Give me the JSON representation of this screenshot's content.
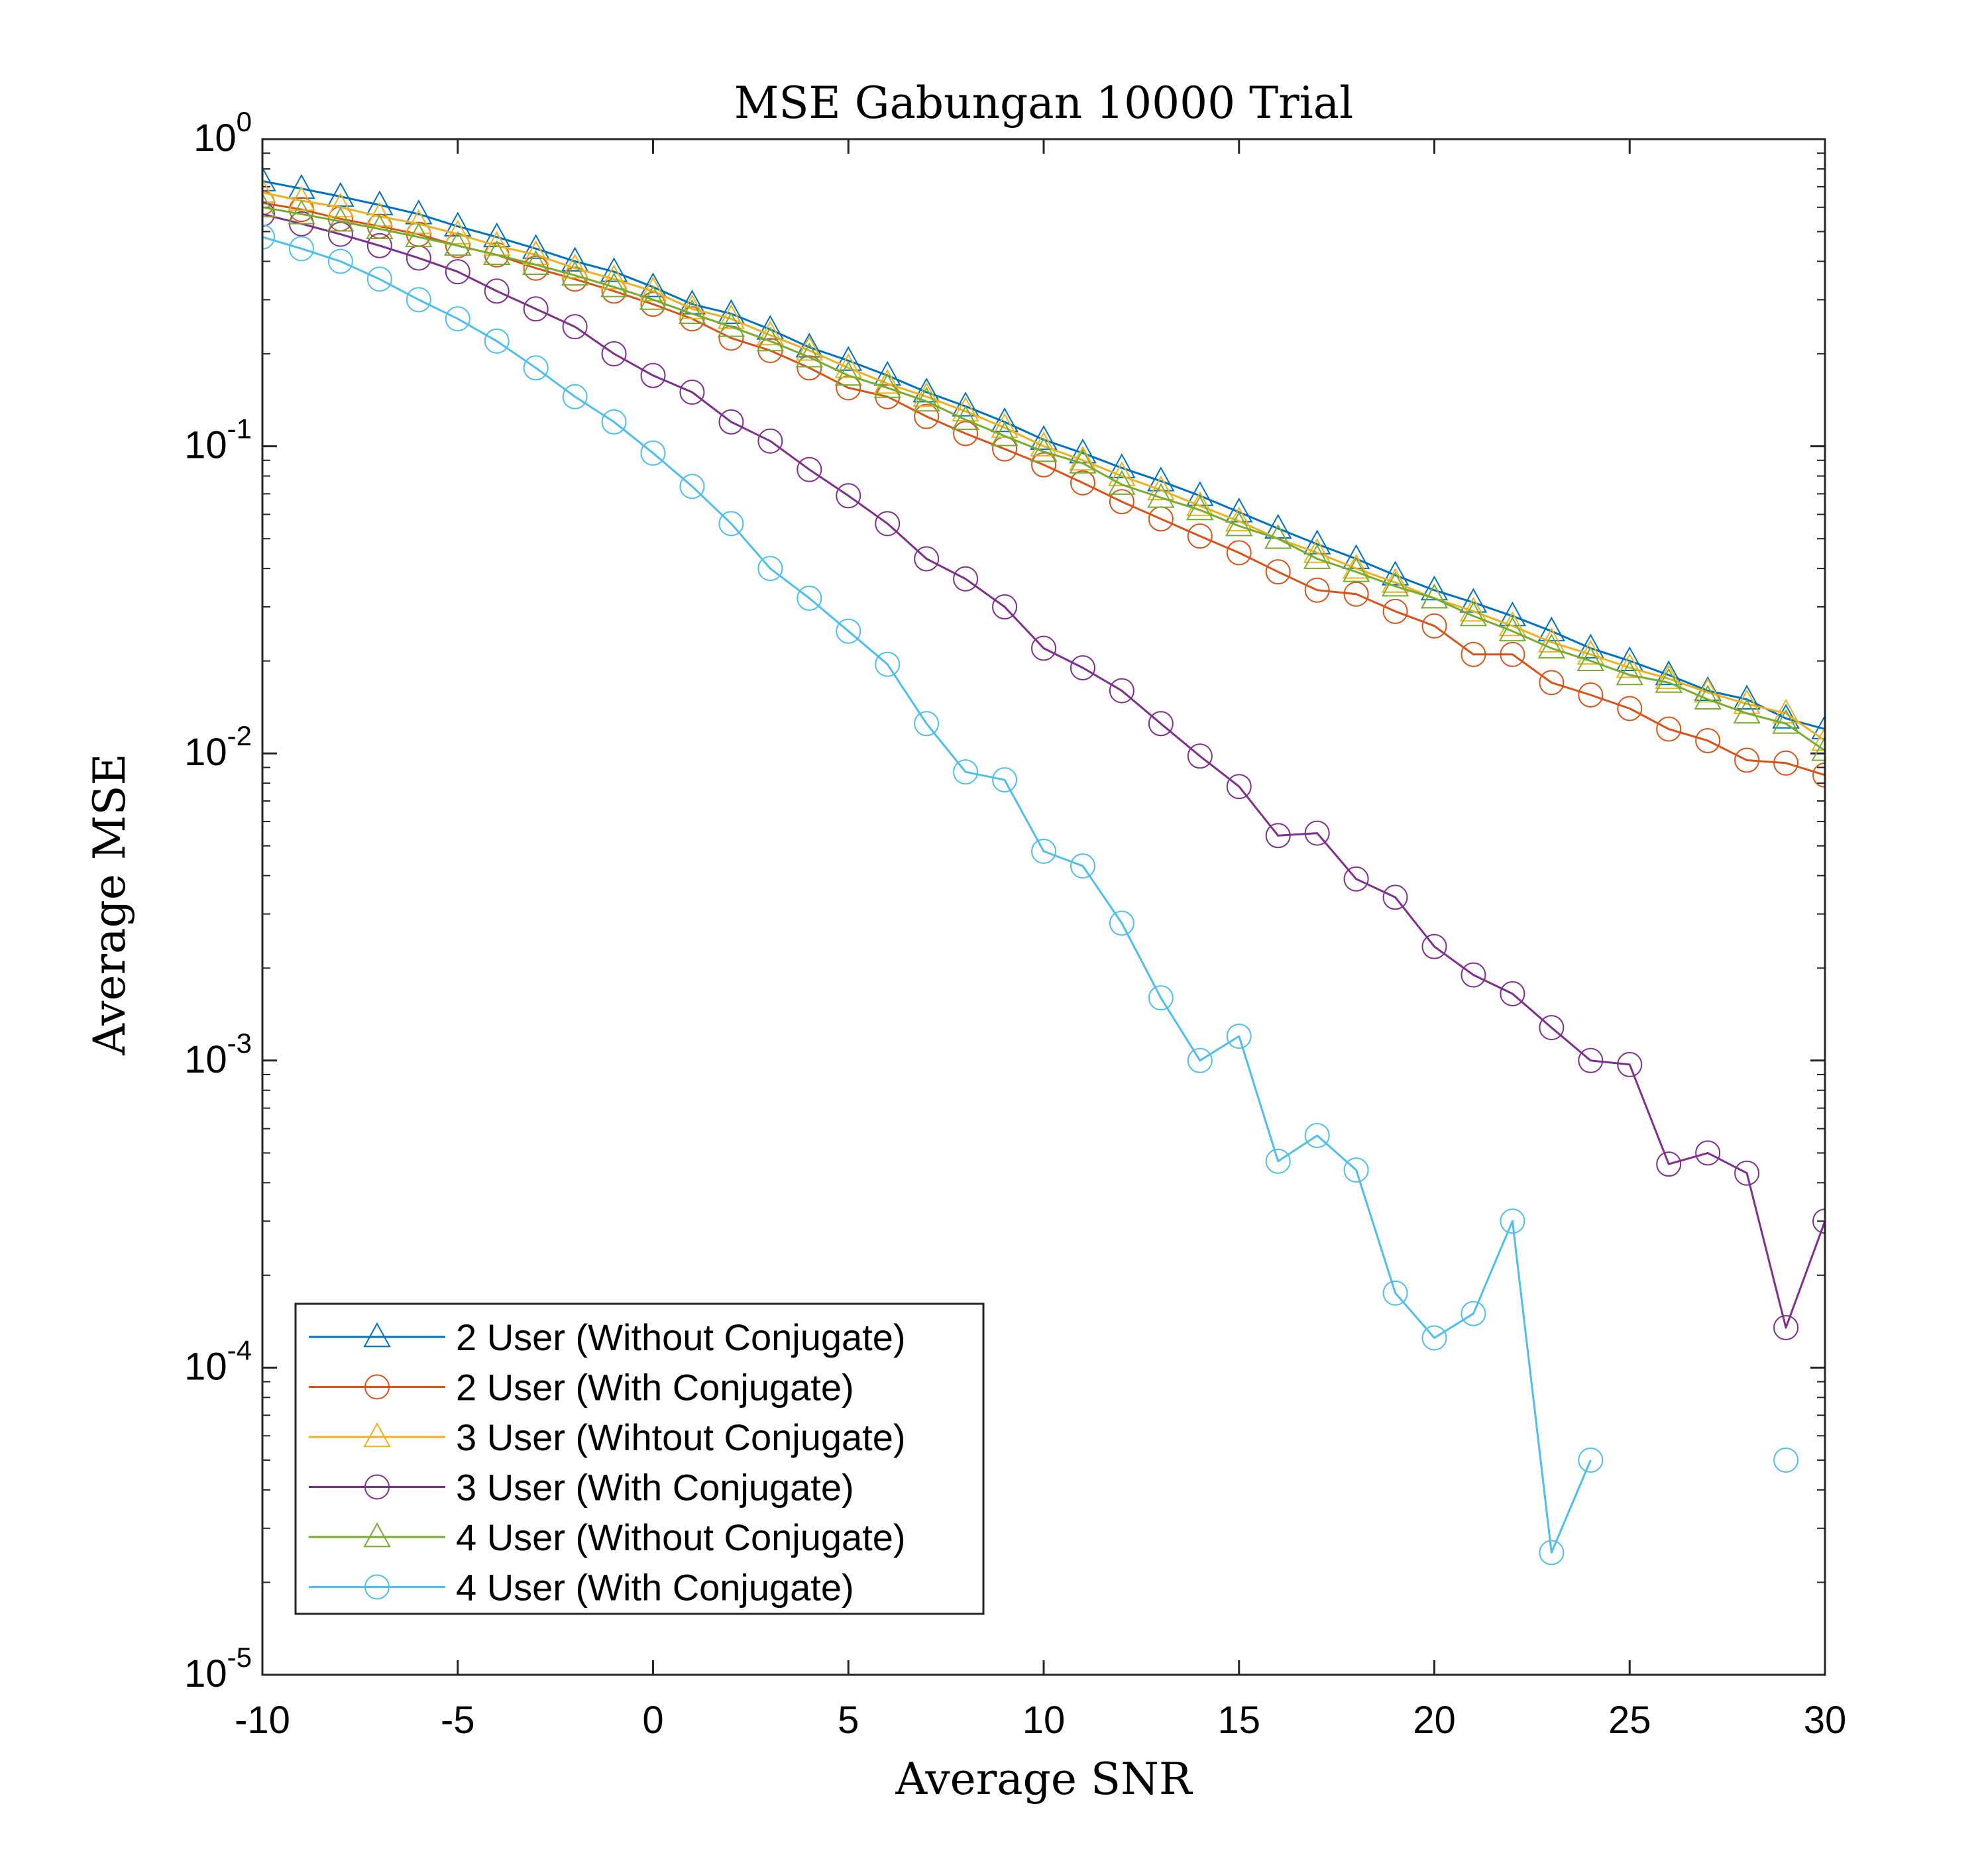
{
  "chart_data": {
    "type": "line",
    "title": "MSE Gabungan 10000 Trial",
    "xlabel": "Average SNR",
    "ylabel": "Average MSE",
    "xlim": [
      -10,
      30
    ],
    "ylim": [
      1e-05,
      1
    ],
    "yscale": "log",
    "grid": false,
    "legend_position": "bottom-left",
    "x_ticks": [
      "-10",
      "-5",
      "0",
      "5",
      "10",
      "15",
      "20",
      "25",
      "30"
    ],
    "y_ticks": [
      {
        "base": "10",
        "exp": "0"
      },
      {
        "base": "10",
        "exp": "-1"
      },
      {
        "base": "10",
        "exp": "-2"
      },
      {
        "base": "10",
        "exp": "-3"
      },
      {
        "base": "10",
        "exp": "-4"
      },
      {
        "base": "10",
        "exp": "-5"
      }
    ],
    "x": [
      -10,
      -9,
      -8,
      -7,
      -6,
      -5,
      -4,
      -3,
      -2,
      -1,
      0,
      1,
      2,
      3,
      4,
      5,
      6,
      7,
      8,
      9,
      10,
      11,
      12,
      13,
      14,
      15,
      16,
      17,
      18,
      19,
      20,
      21,
      22,
      23,
      24,
      25,
      26,
      27,
      28,
      29,
      30
    ],
    "series": [
      {
        "name": "2 User (Without Conjugate)",
        "color": "#0072BD",
        "marker": "triangle",
        "values": [
          0.73,
          0.69,
          0.65,
          0.61,
          0.57,
          0.52,
          0.48,
          0.44,
          0.4,
          0.37,
          0.33,
          0.29,
          0.27,
          0.24,
          0.21,
          0.19,
          0.17,
          0.15,
          0.135,
          0.12,
          0.105,
          0.095,
          0.085,
          0.077,
          0.069,
          0.061,
          0.054,
          0.048,
          0.043,
          0.038,
          0.034,
          0.031,
          0.028,
          0.025,
          0.022,
          0.02,
          0.018,
          0.016,
          0.015,
          0.013,
          0.012
        ]
      },
      {
        "name": "2 User (With Conjugate)",
        "color": "#D95319",
        "marker": "circle",
        "values": [
          0.62,
          0.59,
          0.55,
          0.52,
          0.49,
          0.45,
          0.42,
          0.38,
          0.35,
          0.32,
          0.29,
          0.26,
          0.225,
          0.205,
          0.18,
          0.155,
          0.145,
          0.125,
          0.11,
          0.098,
          0.087,
          0.076,
          0.066,
          0.058,
          0.051,
          0.045,
          0.039,
          0.034,
          0.033,
          0.029,
          0.026,
          0.021,
          0.021,
          0.017,
          0.0155,
          0.014,
          0.012,
          0.011,
          0.0095,
          0.0093,
          0.0085
        ]
      },
      {
        "name": "3 User (Wihtout Conjugate)",
        "color": "#EDB120",
        "marker": "triangle",
        "values": [
          0.67,
          0.63,
          0.6,
          0.56,
          0.53,
          0.49,
          0.45,
          0.42,
          0.38,
          0.35,
          0.32,
          0.28,
          0.26,
          0.23,
          0.205,
          0.18,
          0.16,
          0.145,
          0.13,
          0.115,
          0.1,
          0.09,
          0.08,
          0.072,
          0.064,
          0.057,
          0.05,
          0.045,
          0.04,
          0.036,
          0.032,
          0.029,
          0.026,
          0.023,
          0.021,
          0.019,
          0.0175,
          0.0158,
          0.0145,
          0.0135,
          0.011
        ]
      },
      {
        "name": "3 User (With Conjugate)",
        "color": "#7E2F8E",
        "marker": "circle",
        "values": [
          0.57,
          0.53,
          0.49,
          0.45,
          0.41,
          0.37,
          0.32,
          0.28,
          0.245,
          0.2,
          0.17,
          0.15,
          0.12,
          0.104,
          0.084,
          0.069,
          0.056,
          0.043,
          0.037,
          0.03,
          0.022,
          0.019,
          0.016,
          0.0125,
          0.0098,
          0.0078,
          0.0054,
          0.0055,
          0.0039,
          0.0034,
          0.00235,
          0.0019,
          0.00165,
          0.00128,
          0.001,
          0.00097,
          0.00046,
          0.0005,
          0.00043,
          0.000135,
          0.0003
        ]
      },
      {
        "name": "4 User (Without Conjugate)",
        "color": "#77AC30",
        "marker": "triangle",
        "values": [
          0.6,
          0.57,
          0.54,
          0.51,
          0.48,
          0.45,
          0.42,
          0.39,
          0.36,
          0.33,
          0.3,
          0.27,
          0.245,
          0.22,
          0.195,
          0.17,
          0.155,
          0.14,
          0.122,
          0.108,
          0.096,
          0.088,
          0.075,
          0.068,
          0.062,
          0.055,
          0.05,
          0.043,
          0.039,
          0.035,
          0.032,
          0.028,
          0.025,
          0.022,
          0.02,
          0.018,
          0.017,
          0.015,
          0.0135,
          0.0125,
          0.0102
        ]
      },
      {
        "name": "4 User (With Conjugate)",
        "color": "#4DBEEE",
        "marker": "circle",
        "values": [
          0.48,
          0.44,
          0.4,
          0.35,
          0.3,
          0.26,
          0.22,
          0.18,
          0.145,
          0.12,
          0.095,
          0.074,
          0.056,
          0.04,
          0.032,
          0.025,
          0.0195,
          0.0125,
          0.0087,
          0.0082,
          0.0048,
          0.0043,
          0.0028,
          0.0016,
          0.001,
          0.0012,
          0.00047,
          0.00057,
          0.00044,
          0.000175,
          0.000125,
          0.00015,
          0.0003,
          2.5e-05,
          5e-05,
          null,
          null,
          null,
          null,
          5e-05,
          null
        ]
      }
    ]
  }
}
